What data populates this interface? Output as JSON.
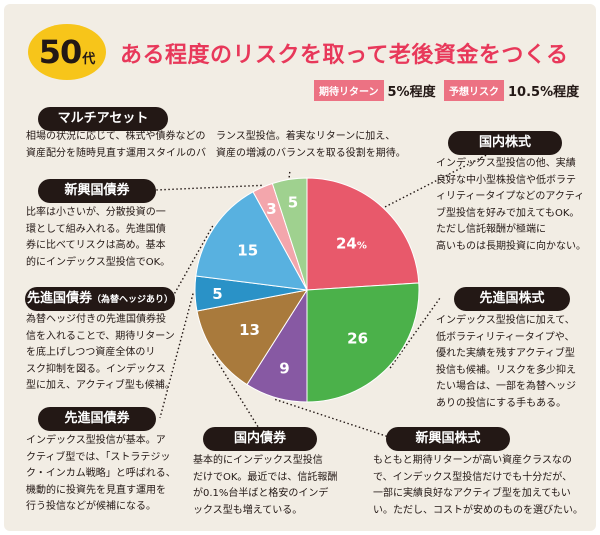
{
  "header": {
    "age_number": "50",
    "age_suffix": "代",
    "title": "ある程度のリスクを取って老後資金をつくる"
  },
  "metrics": {
    "return_label": "期待リターン",
    "return_value": "5%程度",
    "risk_label": "予想リスク",
    "risk_value": "10.5%程度"
  },
  "labels": {
    "hedged_suffix": "（為替ヘッジあり）"
  },
  "chart_data": {
    "type": "pie",
    "title": "50代 ある程度のリスクを取って老後資金をつくる",
    "categories": [
      "国内株式",
      "先進国株式",
      "新興国株式",
      "国内債券",
      "先進国債券",
      "先進国債券",
      "新興国債券",
      "マルチアセット"
    ],
    "values": [
      24,
      26,
      9,
      13,
      5,
      15,
      3,
      5
    ],
    "value_labels": [
      "24%",
      "26",
      "9",
      "13",
      "5",
      "15",
      "3",
      "5"
    ],
    "colors": [
      "#e8596b",
      "#4bb14a",
      "#8759a3",
      "#a97a3c",
      "#2a92c7",
      "#58b1e0",
      "#f3a6ac",
      "#9fd18f"
    ]
  },
  "descriptions": {
    "multi_asset": {
      "line1": "相場の状況に応じて、株式や債券などの",
      "line2": "資産配分を随時見直す運用スタイルのバ",
      "line3": "ランス型投信。着実なリターンに加え、",
      "line4": "資産の増減のバランスを取る役割を期待。"
    },
    "emerging_bonds": {
      "line1": "比率は小さいが、分散投資の一",
      "line2": "環として組み入れる。先進国債",
      "line3": "券に比べてリスクは高め。基本",
      "line4": "的にインデックス型投信でOK。"
    },
    "hedged_bonds": {
      "line1": "為替ヘッジ付きの先進国債券投",
      "line2": "信を入れることで、期待リターン",
      "line3": "を底上げしつつ資産全体のリ",
      "line4": "スク抑制を図る。インデックス",
      "line5": "型に加え、アクティブ型も候補。"
    },
    "developed_bonds": {
      "line1": "インデックス型投信が基本。ア",
      "line2": "クティブ型では、「ストラテジッ",
      "line3": "ク・インカム戦略」と呼ばれる、",
      "line4": "機動的に投資先を見直す運用を",
      "line5": "行う投信などが候補になる。"
    },
    "domestic_bonds": {
      "line1": "基本的にインデックス型投信",
      "line2": "だけでOK。最近では、信託報酬",
      "line3": "が0.1%台半ばと格安のインデ",
      "line4": "ックス型も増えている。"
    },
    "emerging_stocks": {
      "line1": "もともと期待リターンが高い資産クラスなの",
      "line2": "で、インデックス型投信だけでも十分だが、",
      "line3": "一部に実績良好なアクティブ型を加えてもい",
      "line4": "い。ただし、コストが安めのものを選びたい。"
    },
    "domestic_stocks": {
      "line1": "インデックス型投信の他、実績",
      "line2": "良好な中小型株投信や低ボラテ",
      "line3": "ィリティータイプなどのアクティ",
      "line4": "ブ型投信を好みで加えてもOK。",
      "line5": "ただし信託報酬が極端に",
      "line6": "高いものは長期投資に向かない。"
    },
    "developed_stocks": {
      "line1": "インデックス型投信に加えて、",
      "line2": "低ボラティリティータイプや、",
      "line3": "優れた実績を残すアクティブ型",
      "line4": "投信も候補。リスクを多少抑え",
      "line5": "たい場合は、一部を為替ヘッジ",
      "line6": "ありの投信にする手もある。"
    }
  }
}
